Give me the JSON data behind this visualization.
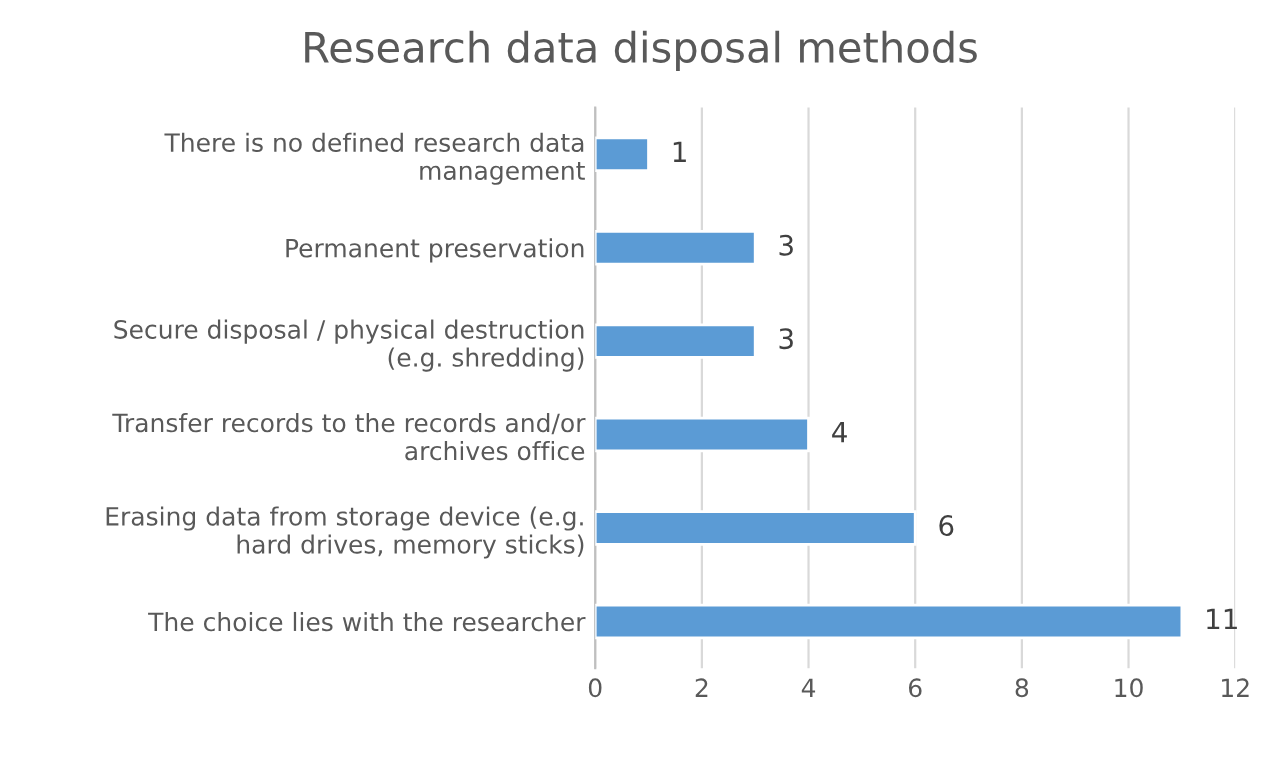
{
  "chart_data": {
    "type": "bar",
    "orientation": "horizontal",
    "title": "Research data disposal methods",
    "categories": [
      "There is no defined research data management",
      "Permanent preservation",
      "Secure disposal / physical destruction (e.g. shredding)",
      "Transfer records to the records and/or archives office",
      "Erasing data from storage device (e.g. hard drives, memory sticks)",
      "The choice lies with the researcher"
    ],
    "values": [
      1,
      3,
      3,
      4,
      6,
      11
    ],
    "color": "#5b9bd5",
    "data_labels": true,
    "xlim": [
      0,
      12
    ],
    "xticks": [
      0,
      2,
      4,
      6,
      8,
      10,
      12
    ],
    "grid": "x",
    "legend": false
  }
}
